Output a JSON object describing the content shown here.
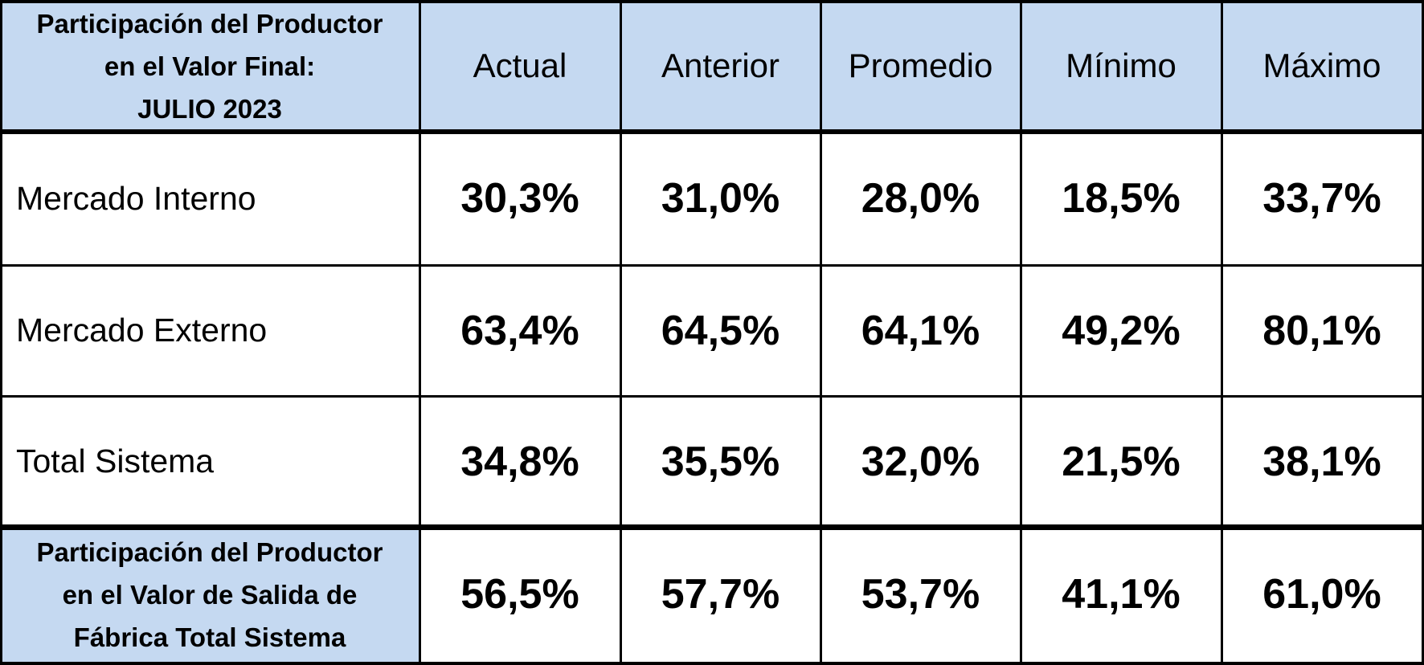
{
  "table": {
    "header": {
      "title": [
        "Participación del Productor",
        "en el Valor Final:",
        "JULIO 2023"
      ],
      "columns": [
        "Actual",
        "Anterior",
        "Promedio",
        "Mínimo",
        "Máximo"
      ]
    },
    "rows": [
      {
        "label": "Mercado Interno",
        "values": [
          "30,3%",
          "31,0%",
          "28,0%",
          "18,5%",
          "33,7%"
        ]
      },
      {
        "label": "Mercado Externo",
        "values": [
          "63,4%",
          "64,5%",
          "64,1%",
          "49,2%",
          "80,1%"
        ]
      },
      {
        "label": "Total Sistema",
        "values": [
          "34,8%",
          "35,5%",
          "32,0%",
          "21,5%",
          "38,1%"
        ]
      }
    ],
    "footer": {
      "label": [
        "Participación del Productor",
        "en el Valor de Salida de",
        "Fábrica Total Sistema"
      ],
      "values": [
        "56,5%",
        "57,7%",
        "53,7%",
        "41,1%",
        "61,0%"
      ]
    }
  }
}
